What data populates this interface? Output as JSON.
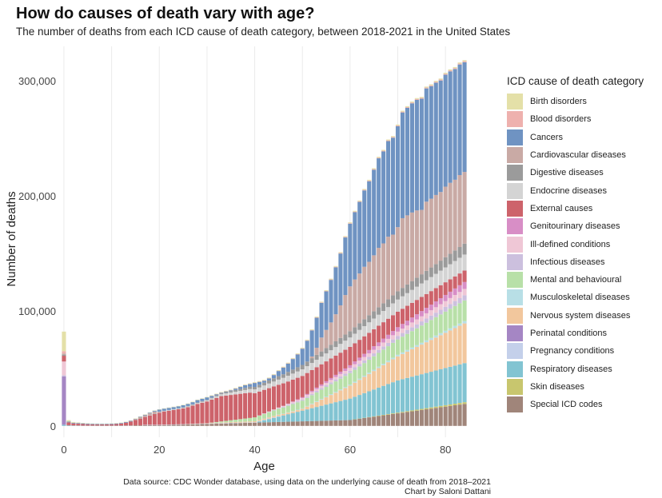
{
  "header": {
    "title": "How do causes of death vary with age?",
    "subtitle": "The number of deaths from each ICD cause of death category, between 2018-2021 in the United States"
  },
  "legend": {
    "title": "ICD cause of death category"
  },
  "caption": {
    "source": "Data source: CDC Wonder database, using data on the underlying cause of death from 2018–2021",
    "credit": "Chart by Saloni Dattani"
  },
  "chart_data": {
    "type": "bar",
    "stacked": true,
    "title": "How do causes of death vary with age?",
    "subtitle": "The number of deaths from each ICD cause of death category, between 2018-2021 in the United States",
    "xlabel": "Age",
    "ylabel": "Number of deaths",
    "xlim": [
      -1,
      85
    ],
    "ylim": [
      -5000,
      330000
    ],
    "xticks": [
      0,
      20,
      40,
      60,
      80
    ],
    "xtick_labels": [
      "0",
      "20",
      "40",
      "60",
      "80"
    ],
    "yticks": [
      0,
      100000,
      200000,
      300000
    ],
    "ytick_labels": [
      "0",
      "100,000",
      "200,000",
      "300,000"
    ],
    "grid": true,
    "legend_position": "right",
    "series": [
      {
        "name": "Special ICD codes",
        "color": "#a0857a"
      },
      {
        "name": "Skin diseases",
        "color": "#c8c66e"
      },
      {
        "name": "Respiratory diseases",
        "color": "#82c4d2"
      },
      {
        "name": "Pregnancy conditions",
        "color": "#c4d0ea"
      },
      {
        "name": "Perinatal conditions",
        "color": "#a586c4"
      },
      {
        "name": "Nervous system diseases",
        "color": "#f2c79d"
      },
      {
        "name": "Musculoskeletal diseases",
        "color": "#b8dfe6"
      },
      {
        "name": "Mental and behavioural",
        "color": "#b8e0a8"
      },
      {
        "name": "Infectious diseases",
        "color": "#ccc0de"
      },
      {
        "name": "Ill-defined conditions",
        "color": "#efc7d6"
      },
      {
        "name": "Genitourinary diseases",
        "color": "#d88ec6"
      },
      {
        "name": "External causes",
        "color": "#cd636b"
      },
      {
        "name": "Endocrine diseases",
        "color": "#d4d4d4"
      },
      {
        "name": "Digestive diseases",
        "color": "#9b9b9b"
      },
      {
        "name": "Cardiovascular diseases",
        "color": "#c9aaa5"
      },
      {
        "name": "Cancers",
        "color": "#6f93c2"
      },
      {
        "name": "Blood disorders",
        "color": "#eeb1ae"
      },
      {
        "name": "Birth disorders",
        "color": "#e4e0a8"
      }
    ],
    "legend_order": [
      "Birth disorders",
      "Blood disorders",
      "Cancers",
      "Cardiovascular diseases",
      "Digestive diseases",
      "Endocrine diseases",
      "External causes",
      "Genitourinary diseases",
      "Ill-defined conditions",
      "Infectious diseases",
      "Mental and behavioural",
      "Musculoskeletal diseases",
      "Nervous system diseases",
      "Perinatal conditions",
      "Pregnancy conditions",
      "Respiratory diseases",
      "Skin diseases",
      "Special ICD codes"
    ],
    "data_note": "Approximate values read from the chart; stack order bottom to top follows series order.",
    "data": [
      {
        "age": 0,
        "values": {
          "Special ICD codes": 0,
          "Perinatal conditions": 42000,
          "Ill-defined conditions": 12000,
          "Blood disorders": 2000,
          "Respiratory diseases": 1000,
          "External causes": 5000,
          "Digestive diseases": 1000,
          "Birth disorders": 17000,
          "Infectious diseases": 1000,
          "Cardiovascular diseases": 1000
        }
      },
      {
        "age": 1,
        "values": {
          "External causes": 2500,
          "Birth disorders": 1300,
          "Cancers": 600,
          "Respiratory diseases": 400,
          "Special ICD codes": 200
        }
      },
      {
        "age": 2,
        "values": {
          "External causes": 1700,
          "Birth disorders": 700,
          "Cancers": 550,
          "Respiratory diseases": 300,
          "Special ICD codes": 150
        }
      },
      {
        "age": 3,
        "values": {
          "External causes": 1500,
          "Birth disorders": 500,
          "Cancers": 600,
          "Respiratory diseases": 250,
          "Special ICD codes": 150
        }
      },
      {
        "age": 4,
        "values": {
          "External causes": 1300,
          "Birth disorders": 400,
          "Cancers": 600,
          "Respiratory diseases": 200,
          "Special ICD codes": 100
        }
      },
      {
        "age": 5,
        "values": {
          "External causes": 1100,
          "Birth disorders": 350,
          "Cancers": 600,
          "Respiratory diseases": 200,
          "Special ICD codes": 100
        }
      },
      {
        "age": 6,
        "values": {
          "External causes": 1000,
          "Birth disorders": 300,
          "Cancers": 550,
          "Respiratory diseases": 180,
          "Special ICD codes": 100
        }
      },
      {
        "age": 7,
        "values": {
          "External causes": 950,
          "Birth disorders": 300,
          "Cancers": 550,
          "Respiratory diseases": 170,
          "Special ICD codes": 100
        }
      },
      {
        "age": 8,
        "values": {
          "External causes": 950,
          "Birth disorders": 280,
          "Cancers": 520,
          "Respiratory diseases": 170,
          "Special ICD codes": 100
        }
      },
      {
        "age": 9,
        "values": {
          "External causes": 1000,
          "Birth disorders": 280,
          "Cancers": 520,
          "Respiratory diseases": 170,
          "Special ICD codes": 100
        }
      },
      {
        "age": 10,
        "values": {
          "External causes": 1100,
          "Birth disorders": 280,
          "Cancers": 530,
          "Respiratory diseases": 180,
          "Special ICD codes": 100
        }
      },
      {
        "age": 11,
        "values": {
          "External causes": 1300,
          "Birth disorders": 300,
          "Cancers": 550,
          "Respiratory diseases": 180,
          "Special ICD codes": 100
        }
      },
      {
        "age": 12,
        "values": {
          "External causes": 1700,
          "Birth disorders": 300,
          "Cancers": 550,
          "Respiratory diseases": 190,
          "Special ICD codes": 100
        }
      },
      {
        "age": 13,
        "values": {
          "External causes": 2500,
          "Birth disorders": 300,
          "Cancers": 560,
          "Respiratory diseases": 200,
          "Special ICD codes": 150
        }
      },
      {
        "age": 14,
        "values": {
          "External causes": 3500,
          "Birth disorders": 300,
          "Cancers": 600,
          "Respiratory diseases": 200,
          "Special ICD codes": 150
        }
      }
    ],
    "totals_by_age": [
      82000,
      5000,
      3400,
      3000,
      2700,
      2400,
      2200,
      2100,
      2050,
      2100,
      2200,
      2500,
      2900,
      3800,
      5000,
      6500,
      8200,
      10000,
      11800,
      13500,
      14500,
      15300,
      16000,
      16700,
      17400,
      18300,
      19500,
      21000,
      22800,
      24000,
      25200,
      26600,
      28000,
      29500,
      30500,
      31500,
      33000,
      34500,
      36000,
      37000,
      38000,
      39000,
      40000,
      42000,
      45000,
      48500,
      51500,
      55000,
      59000,
      63000,
      68000,
      75000,
      84000,
      95000,
      108000,
      118000,
      128000,
      139000,
      151000,
      165000,
      177000,
      187000,
      196000,
      206000,
      214000,
      224000,
      234000,
      240000,
      249000,
      252000,
      262000,
      274000,
      278000,
      282000,
      285000,
      286000,
      295000,
      297000,
      300000,
      302000,
      307000,
      310000,
      312000,
      316000,
      318000
    ]
  }
}
